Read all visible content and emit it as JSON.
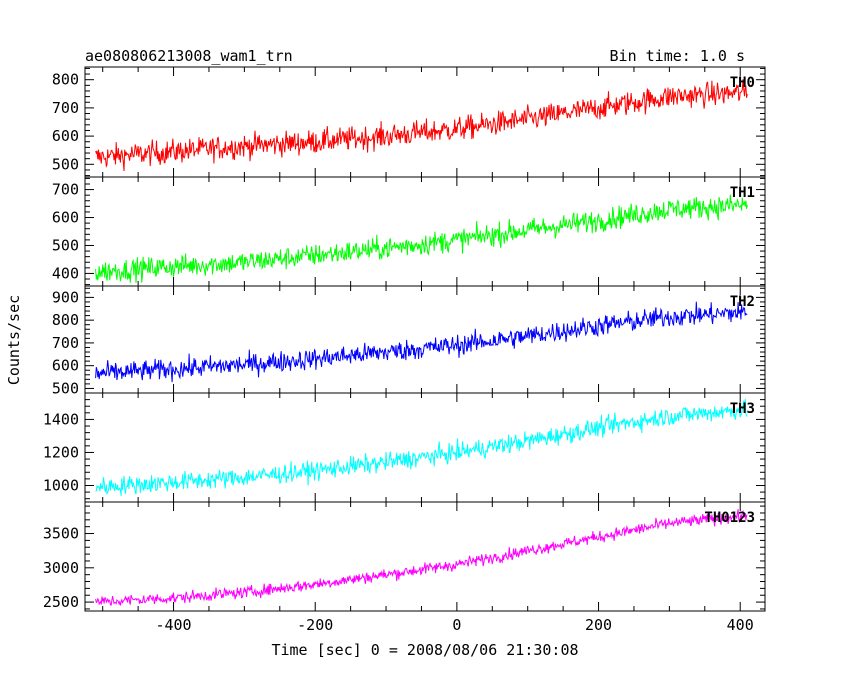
{
  "header": {
    "title": "ae080806213008_wam1_trn",
    "bin_time": "Bin time: 1.0 s"
  },
  "axes": {
    "xlabel": "Time [sec] 0 = 2008/08/06 21:30:08",
    "ylabel": "Counts/sec"
  },
  "chart_data": {
    "type": "line",
    "title": "ae080806213008_wam1_trn",
    "xlabel": "Time [sec] 0 = 2008/08/06 21:30:08",
    "ylabel": "Counts/sec",
    "xlim": [
      -525,
      435
    ],
    "xticks": [
      -400,
      -200,
      0,
      200,
      400
    ],
    "bin_time_s": 1.0,
    "grid": false,
    "panels": [
      {
        "name": "TH0",
        "color": "#ff0000",
        "ylim": [
          455,
          845
        ],
        "yticks": [
          500,
          600,
          700,
          800
        ],
        "x": [
          -510,
          -400,
          -300,
          -200,
          -100,
          0,
          100,
          200,
          300,
          410
        ],
        "y": [
          525,
          545,
          565,
          580,
          600,
          625,
          660,
          700,
          740,
          755
        ],
        "noise": 30
      },
      {
        "name": "TH1",
        "color": "#00ff00",
        "ylim": [
          355,
          745
        ],
        "yticks": [
          400,
          500,
          600,
          700
        ],
        "x": [
          -510,
          -400,
          -300,
          -200,
          -100,
          0,
          100,
          200,
          300,
          410
        ],
        "y": [
          405,
          425,
          440,
          465,
          490,
          520,
          555,
          590,
          630,
          645
        ],
        "noise": 28
      },
      {
        "name": "TH2",
        "color": "#0000ff",
        "ylim": [
          480,
          950
        ],
        "yticks": [
          500,
          600,
          700,
          800,
          900
        ],
        "x": [
          -510,
          -400,
          -300,
          -200,
          -100,
          0,
          100,
          200,
          300,
          410
        ],
        "y": [
          565,
          585,
          605,
          630,
          660,
          690,
          730,
          775,
          815,
          835
        ],
        "noise": 32
      },
      {
        "name": "TH3",
        "color": "#00ffff",
        "ylim": [
          900,
          1560
        ],
        "yticks": [
          1000,
          1200,
          1400
        ],
        "x": [
          -510,
          -400,
          -300,
          -200,
          -100,
          0,
          100,
          200,
          300,
          410
        ],
        "y": [
          990,
          1020,
          1050,
          1090,
          1140,
          1200,
          1270,
          1350,
          1420,
          1460
        ],
        "noise": 40
      },
      {
        "name": "TH0123",
        "color": "#ff00ff",
        "ylim": [
          2370,
          3960
        ],
        "yticks": [
          2500,
          3000,
          3500
        ],
        "x": [
          -510,
          -400,
          -300,
          -200,
          -100,
          0,
          100,
          200,
          300,
          410
        ],
        "y": [
          2500,
          2560,
          2640,
          2760,
          2900,
          3050,
          3250,
          3450,
          3650,
          3760
        ],
        "noise": 60
      }
    ]
  }
}
